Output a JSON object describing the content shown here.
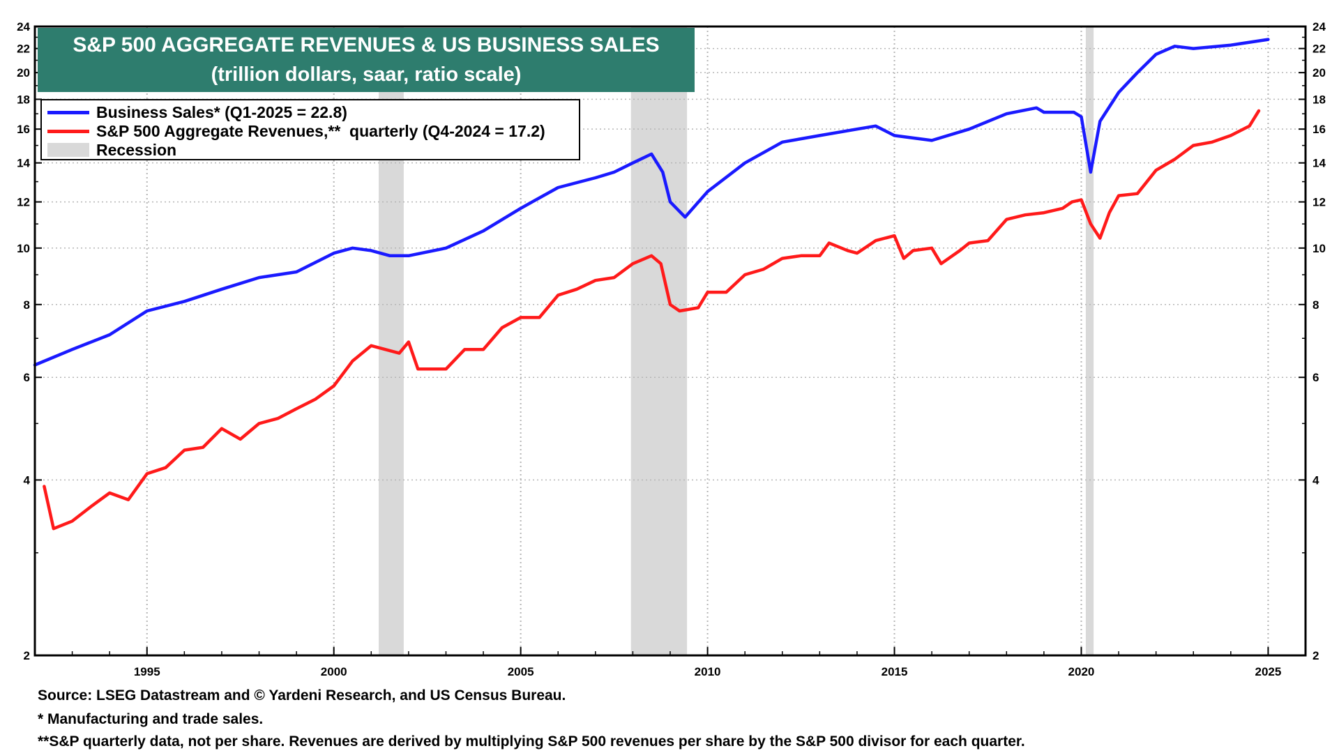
{
  "colors": {
    "business_sales": "#1a1aff",
    "sp500_revenues": "#ff1a1a",
    "recession": "#d9d9d9",
    "title_bg": "#2e7d6e",
    "title_text": "#ffffff",
    "axis": "#000000",
    "grid": "#b5b5b5"
  },
  "chart_data": {
    "type": "line",
    "title": "S&P 500 AGGREGATE REVENUES & US BUSINESS SALES",
    "subtitle": "(trillion dollars, saar, ratio scale)",
    "xlabel": "",
    "ylabel": "",
    "y_scale": "log",
    "xlim": [
      1992.0,
      2026.0
    ],
    "ylim": [
      2,
      24
    ],
    "x_ticks": [
      1995,
      2000,
      2005,
      2010,
      2015,
      2020,
      2025
    ],
    "x_tick_labels": [
      "1995",
      "2000",
      "2005",
      "2010",
      "2015",
      "2020",
      "2025"
    ],
    "y_ticks": [
      2,
      4,
      6,
      8,
      10,
      12,
      14,
      16,
      18,
      20,
      22,
      24
    ],
    "y_tick_labels": [
      "2",
      "4",
      "6",
      "8",
      "10",
      "12",
      "14",
      "16",
      "18",
      "20",
      "22",
      "24"
    ],
    "grid": true,
    "legend_position": "top-left",
    "legend": {
      "business_sales": "Business Sales* (Q1-2025 = 22.8)",
      "sp500_revenues": "S&P 500 Aggregate Revenues,**  quarterly (Q4-2024 = 17.2)",
      "recession": "Recession"
    },
    "recessions": [
      [
        2001.2,
        2001.87
      ],
      [
        2007.95,
        2009.45
      ],
      [
        2020.12,
        2020.33
      ]
    ],
    "series": [
      {
        "name": "Business Sales*",
        "key": "business_sales",
        "x": [
          1992.0,
          1993.0,
          1994.0,
          1995.0,
          1996.0,
          1997.0,
          1998.0,
          1999.0,
          2000.0,
          2000.5,
          2001.0,
          2001.5,
          2002.0,
          2003.0,
          2004.0,
          2005.0,
          2006.0,
          2007.0,
          2007.5,
          2008.0,
          2008.5,
          2008.8,
          2009.0,
          2009.4,
          2010.0,
          2011.0,
          2012.0,
          2013.0,
          2014.0,
          2014.5,
          2015.0,
          2016.0,
          2017.0,
          2018.0,
          2018.8,
          2019.0,
          2019.8,
          2020.0,
          2020.25,
          2020.5,
          2021.0,
          2021.5,
          2022.0,
          2022.5,
          2023.0,
          2024.0,
          2025.0
        ],
        "values": [
          6.3,
          6.7,
          7.1,
          7.8,
          8.1,
          8.5,
          8.9,
          9.1,
          9.8,
          10.0,
          9.9,
          9.7,
          9.7,
          10.0,
          10.7,
          11.7,
          12.7,
          13.2,
          13.5,
          14.0,
          14.5,
          13.5,
          12.0,
          11.3,
          12.5,
          14.0,
          15.2,
          15.6,
          16.0,
          16.2,
          15.6,
          15.3,
          16.0,
          17.0,
          17.4,
          17.1,
          17.1,
          16.8,
          13.5,
          16.5,
          18.5,
          20.0,
          21.5,
          22.2,
          22.0,
          22.3,
          22.8
        ]
      },
      {
        "name": "S&P 500 Aggregate Revenues",
        "key": "sp500_revenues",
        "x": [
          1992.25,
          1992.5,
          1993.0,
          1993.5,
          1994.0,
          1994.5,
          1995.0,
          1995.5,
          1996.0,
          1996.5,
          1997.0,
          1997.5,
          1998.0,
          1998.5,
          1999.0,
          1999.5,
          2000.0,
          2000.5,
          2001.0,
          2001.75,
          2002.0,
          2002.25,
          2002.75,
          2003.0,
          2003.5,
          2004.0,
          2004.5,
          2005.0,
          2005.5,
          2006.0,
          2006.5,
          2007.0,
          2007.5,
          2008.0,
          2008.5,
          2008.75,
          2009.0,
          2009.25,
          2009.75,
          2010.0,
          2010.5,
          2011.0,
          2011.5,
          2012.0,
          2012.5,
          2013.0,
          2013.25,
          2013.75,
          2014.0,
          2014.5,
          2015.0,
          2015.25,
          2015.5,
          2016.0,
          2016.25,
          2016.75,
          2017.0,
          2017.5,
          2018.0,
          2018.5,
          2019.0,
          2019.5,
          2019.75,
          2020.0,
          2020.25,
          2020.5,
          2020.75,
          2021.0,
          2021.5,
          2022.0,
          2022.5,
          2023.0,
          2023.5,
          2024.0,
          2024.5,
          2024.75
        ],
        "values": [
          3.9,
          3.3,
          3.4,
          3.6,
          3.8,
          3.7,
          4.1,
          4.2,
          4.5,
          4.55,
          4.9,
          4.7,
          5.0,
          5.1,
          5.3,
          5.5,
          5.8,
          6.4,
          6.8,
          6.6,
          6.9,
          6.2,
          6.2,
          6.2,
          6.7,
          6.7,
          7.3,
          7.6,
          7.6,
          8.3,
          8.5,
          8.8,
          8.9,
          9.4,
          9.7,
          9.4,
          8.0,
          7.8,
          7.9,
          8.4,
          8.4,
          9.0,
          9.2,
          9.6,
          9.7,
          9.7,
          10.2,
          9.9,
          9.8,
          10.3,
          10.5,
          9.6,
          9.9,
          10.0,
          9.4,
          9.9,
          10.2,
          10.3,
          11.2,
          11.4,
          11.5,
          11.7,
          12.0,
          12.1,
          11.0,
          10.4,
          11.5,
          12.3,
          12.4,
          13.6,
          14.2,
          15.0,
          15.2,
          15.6,
          16.2,
          17.2
        ]
      }
    ],
    "footnotes": [
      "Source: LSEG Datastream and © Yardeni Research, and US Census Bureau.",
      "* Manufacturing and trade sales.",
      "**S&P quarterly data, not per share. Revenues are derived by multiplying S&P 500 revenues per share by the S&P 500 divisor for each quarter."
    ]
  }
}
